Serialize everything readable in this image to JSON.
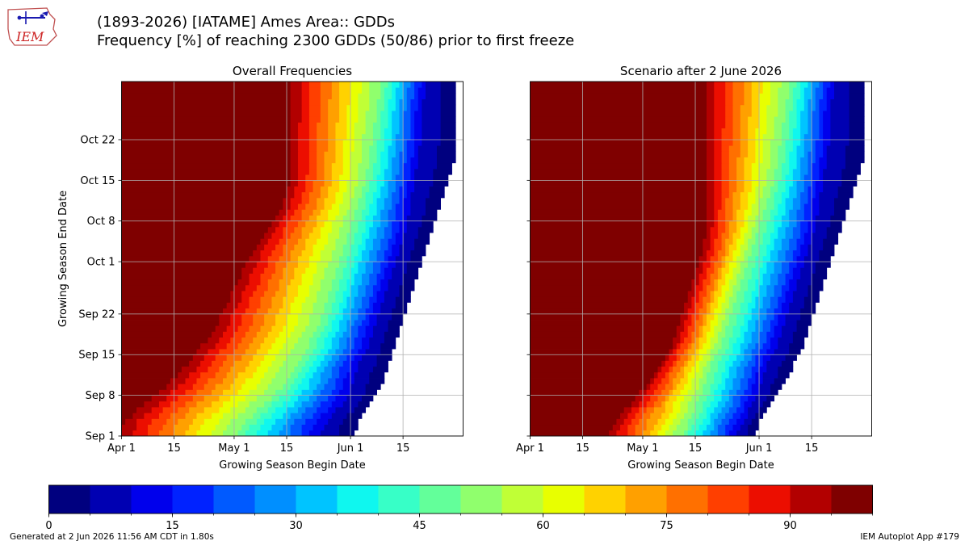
{
  "header": {
    "title_line1": "(1893-2026) [IATAME] Ames Area:: GDDs",
    "title_line2": "Frequency [%] of reaching 2300 GDDs (50/86) prior to first freeze",
    "logo_text": "IEM"
  },
  "footer": {
    "left": "Generated at 2 Jun 2026 11:56 AM CDT in 1.80s",
    "right": "IEM Autoplot App #179"
  },
  "chart_data": [
    {
      "type": "heatmap",
      "title": "Overall Frequencies",
      "xlabel": "Growing Season Begin Date",
      "ylabel": "Growing Season End Date",
      "x_range": [
        "Apr 1",
        "Jun 30"
      ],
      "y_range": [
        "Sep 1",
        "Oct 31"
      ],
      "x_ticks": [
        {
          "label": "Apr 1",
          "day": 0
        },
        {
          "label": "15",
          "day": 14
        },
        {
          "label": "May 1",
          "day": 30
        },
        {
          "label": "15",
          "day": 44
        },
        {
          "label": "Jun 1",
          "day": 61
        },
        {
          "label": "15",
          "day": 75
        }
      ],
      "y_ticks": [
        {
          "label": "Sep 1",
          "day": 0
        },
        {
          "label": "Sep 8",
          "day": 7
        },
        {
          "label": "Sep 15",
          "day": 14
        },
        {
          "label": "Sep 22",
          "day": 21
        },
        {
          "label": "Oct 1",
          "day": 30
        },
        {
          "label": "Oct 8",
          "day": 37
        },
        {
          "label": "Oct 15",
          "day": 44
        },
        {
          "label": "Oct 22",
          "day": 51
        }
      ],
      "grid": true,
      "boundary_days": {
        "y": [
          0,
          2,
          5,
          8,
          12,
          16,
          20,
          24,
          28,
          32,
          36,
          40,
          44,
          48,
          52,
          56,
          60
        ],
        "p95": [
          0,
          0,
          5,
          11,
          17,
          22,
          26,
          29,
          32,
          35,
          39,
          43,
          45,
          45,
          45,
          45,
          45
        ],
        "p50": [
          30,
          32,
          37,
          42,
          46,
          50,
          53,
          55,
          57,
          59,
          61,
          63,
          65,
          66,
          67,
          68,
          69
        ],
        "p10": [
          53,
          54,
          58,
          61,
          63,
          66,
          68,
          70,
          72,
          74,
          76,
          77,
          78,
          79,
          80,
          80,
          81
        ],
        "end": [
          62,
          63,
          66,
          69,
          71,
          73,
          75,
          77,
          79,
          81,
          83,
          85,
          87,
          89,
          89,
          89,
          89
        ]
      }
    },
    {
      "type": "heatmap",
      "title": "Scenario after 2 June 2026",
      "xlabel": "Growing Season Begin Date",
      "x_range": [
        "Apr 1",
        "Jun 30"
      ],
      "y_range": [
        "Sep 1",
        "Oct 31"
      ],
      "grid": true,
      "boundary_days": {
        "y": [
          0,
          2,
          5,
          8,
          12,
          16,
          20,
          24,
          28,
          32,
          36,
          40,
          44,
          48,
          52,
          56,
          60
        ],
        "p95": [
          21,
          22,
          26,
          30,
          34,
          38,
          40,
          42,
          44,
          46,
          47,
          47,
          47,
          47,
          47,
          47,
          47
        ],
        "p50": [
          40,
          42,
          44,
          46,
          48,
          51,
          53,
          55,
          57,
          59,
          61,
          63,
          65,
          66,
          67,
          68,
          69
        ],
        "p10": [
          55,
          56,
          59,
          61,
          63,
          66,
          68,
          70,
          72,
          74,
          76,
          77,
          78,
          79,
          80,
          80,
          81
        ],
        "end": [
          60,
          61,
          64,
          67,
          70,
          73,
          75,
          77,
          79,
          81,
          83,
          85,
          87,
          89,
          89,
          89,
          89
        ]
      }
    }
  ],
  "colorbar": {
    "ticks": [
      0,
      15,
      30,
      45,
      60,
      75,
      90
    ],
    "range": [
      0,
      100
    ],
    "bins": 20,
    "colors": [
      "#00007f",
      "#0000b2",
      "#0000ec",
      "#0022ff",
      "#005aff",
      "#008fff",
      "#00c4ff",
      "#0ff7ef",
      "#37ffc7",
      "#63ff9a",
      "#90ff6d",
      "#c0ff36",
      "#e8ff00",
      "#ffd200",
      "#ffa000",
      "#ff7000",
      "#ff3f00",
      "#ec0e00",
      "#b20000",
      "#7f0000"
    ]
  }
}
